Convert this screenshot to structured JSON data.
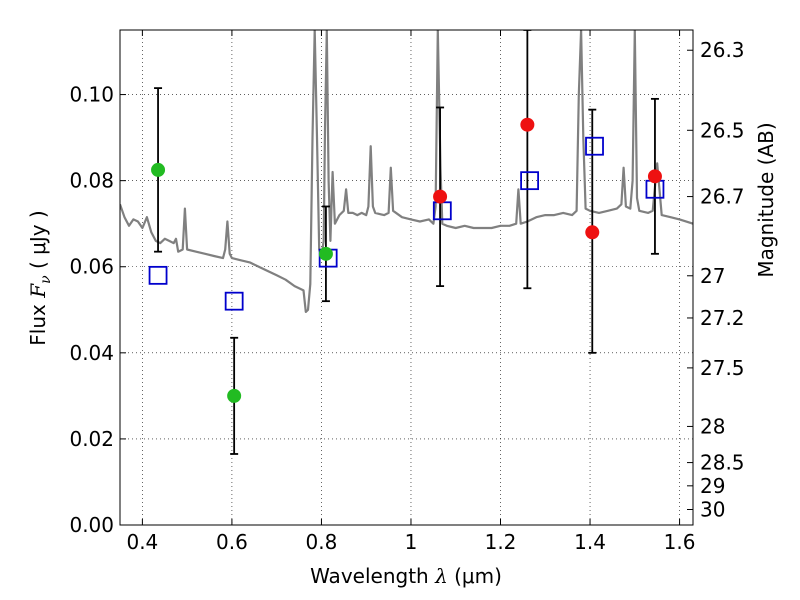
{
  "chart_data": {
    "type": "scatter",
    "xlabel": "Wavelength  λ (μm)",
    "ylabel": "Flux  Fν  ( μJy )",
    "ylabel_parts": {
      "prefix": "Flux  ",
      "var": "F",
      "sub": "ν",
      "unit": "  ( μJy )"
    },
    "xlabel_parts": {
      "prefix": "Wavelength  ",
      "var": "λ",
      "unit": " (μm)"
    },
    "y2label": "Magnitude (AB)",
    "xlim": [
      0.35,
      1.63
    ],
    "ylim": [
      0.0,
      0.115
    ],
    "grid": true,
    "x_ticks": [
      0.4,
      0.6,
      0.8,
      1.0,
      1.2,
      1.4,
      1.6
    ],
    "x_tick_labels": [
      "0.4",
      "0.6",
      "0.8",
      "1",
      "1.2",
      "1.4",
      "1.6"
    ],
    "y_ticks": [
      0.0,
      0.02,
      0.04,
      0.06,
      0.08,
      0.1
    ],
    "y_tick_labels": [
      "0.00",
      "0.02",
      "0.04",
      "0.06",
      "0.08",
      "0.10"
    ],
    "y2_ticks": [
      {
        "label": "26.3",
        "flux": 0.1103
      },
      {
        "label": "26.5",
        "flux": 0.0917
      },
      {
        "label": "26.7",
        "flux": 0.0763
      },
      {
        "label": "27",
        "flux": 0.0579
      },
      {
        "label": "27.2",
        "flux": 0.0481
      },
      {
        "label": "27.5",
        "flux": 0.0365
      },
      {
        "label": "28",
        "flux": 0.0229
      },
      {
        "label": "28.5",
        "flux": 0.0145
      },
      {
        "label": "29",
        "flux": 0.0091
      },
      {
        "label": "30",
        "flux": 0.0036
      }
    ],
    "series": [
      {
        "name": "model spectrum",
        "kind": "line",
        "color": "#808080",
        "points": [
          [
            0.35,
            0.0745
          ],
          [
            0.36,
            0.0715
          ],
          [
            0.37,
            0.0695
          ],
          [
            0.38,
            0.071
          ],
          [
            0.39,
            0.0705
          ],
          [
            0.4,
            0.069
          ],
          [
            0.41,
            0.0715
          ],
          [
            0.42,
            0.068
          ],
          [
            0.43,
            0.066
          ],
          [
            0.44,
            0.0655
          ],
          [
            0.45,
            0.0665
          ],
          [
            0.46,
            0.066
          ],
          [
            0.47,
            0.0655
          ],
          [
            0.475,
            0.0665
          ],
          [
            0.48,
            0.0635
          ],
          [
            0.49,
            0.064
          ],
          [
            0.495,
            0.0735
          ],
          [
            0.5,
            0.064
          ],
          [
            0.52,
            0.0635
          ],
          [
            0.54,
            0.063
          ],
          [
            0.56,
            0.0625
          ],
          [
            0.58,
            0.062
          ],
          [
            0.585,
            0.064
          ],
          [
            0.59,
            0.0705
          ],
          [
            0.595,
            0.063
          ],
          [
            0.6,
            0.062
          ],
          [
            0.62,
            0.0615
          ],
          [
            0.64,
            0.061
          ],
          [
            0.65,
            0.0605
          ],
          [
            0.66,
            0.06
          ],
          [
            0.68,
            0.059
          ],
          [
            0.7,
            0.058
          ],
          [
            0.72,
            0.057
          ],
          [
            0.74,
            0.0555
          ],
          [
            0.76,
            0.0545
          ],
          [
            0.765,
            0.0495
          ],
          [
            0.77,
            0.05
          ],
          [
            0.775,
            0.056
          ],
          [
            0.78,
            0.09
          ],
          [
            0.785,
            0.115
          ],
          [
            0.79,
            0.09
          ],
          [
            0.795,
            0.064
          ],
          [
            0.8,
            0.0625
          ],
          [
            0.805,
            0.066
          ],
          [
            0.808,
            0.092
          ],
          [
            0.812,
            0.115
          ],
          [
            0.816,
            0.08
          ],
          [
            0.82,
            0.066
          ],
          [
            0.825,
            0.082
          ],
          [
            0.83,
            0.07
          ],
          [
            0.84,
            0.072
          ],
          [
            0.85,
            0.073
          ],
          [
            0.855,
            0.078
          ],
          [
            0.86,
            0.0725
          ],
          [
            0.87,
            0.0725
          ],
          [
            0.88,
            0.072
          ],
          [
            0.89,
            0.0725
          ],
          [
            0.9,
            0.072
          ],
          [
            0.905,
            0.074
          ],
          [
            0.91,
            0.088
          ],
          [
            0.915,
            0.074
          ],
          [
            0.92,
            0.0725
          ],
          [
            0.94,
            0.072
          ],
          [
            0.95,
            0.0725
          ],
          [
            0.955,
            0.083
          ],
          [
            0.96,
            0.073
          ],
          [
            0.98,
            0.0715
          ],
          [
            1.0,
            0.071
          ],
          [
            1.02,
            0.0705
          ],
          [
            1.04,
            0.071
          ],
          [
            1.05,
            0.07
          ],
          [
            1.055,
            0.074
          ],
          [
            1.06,
            0.115
          ],
          [
            1.066,
            0.083
          ],
          [
            1.07,
            0.07
          ],
          [
            1.08,
            0.0695
          ],
          [
            1.1,
            0.069
          ],
          [
            1.12,
            0.0695
          ],
          [
            1.14,
            0.069
          ],
          [
            1.16,
            0.069
          ],
          [
            1.18,
            0.069
          ],
          [
            1.2,
            0.0695
          ],
          [
            1.22,
            0.0695
          ],
          [
            1.235,
            0.07
          ],
          [
            1.24,
            0.078
          ],
          [
            1.245,
            0.07
          ],
          [
            1.26,
            0.0705
          ],
          [
            1.28,
            0.0715
          ],
          [
            1.3,
            0.072
          ],
          [
            1.32,
            0.072
          ],
          [
            1.34,
            0.0725
          ],
          [
            1.36,
            0.072
          ],
          [
            1.37,
            0.073
          ],
          [
            1.375,
            0.1
          ],
          [
            1.38,
            0.115
          ],
          [
            1.385,
            0.09
          ],
          [
            1.39,
            0.0735
          ],
          [
            1.4,
            0.073
          ],
          [
            1.42,
            0.0725
          ],
          [
            1.44,
            0.073
          ],
          [
            1.46,
            0.0735
          ],
          [
            1.47,
            0.0745
          ],
          [
            1.475,
            0.083
          ],
          [
            1.48,
            0.074
          ],
          [
            1.49,
            0.0735
          ],
          [
            1.495,
            0.08
          ],
          [
            1.5,
            0.115
          ],
          [
            1.505,
            0.076
          ],
          [
            1.51,
            0.073
          ],
          [
            1.53,
            0.0725
          ],
          [
            1.54,
            0.073
          ],
          [
            1.55,
            0.084
          ],
          [
            1.56,
            0.072
          ],
          [
            1.58,
            0.0715
          ],
          [
            1.6,
            0.071
          ],
          [
            1.63,
            0.07
          ]
        ]
      },
      {
        "name": "model photometry",
        "kind": "open-square",
        "color": "#0000cc",
        "x": [
          0.435,
          0.605,
          0.815,
          1.07,
          1.265,
          1.41,
          1.545
        ],
        "y": [
          0.058,
          0.052,
          0.062,
          0.073,
          0.08,
          0.088,
          0.078
        ]
      },
      {
        "name": "detections (blue bands)",
        "kind": "filled-circle",
        "color": "#22bb22",
        "x": [
          0.435,
          0.605,
          0.81
        ],
        "y": [
          0.0825,
          0.03,
          0.063
        ]
      },
      {
        "name": "detections (red bands)",
        "kind": "filled-circle",
        "color": "#ee1111",
        "x": [
          1.065,
          1.26,
          1.405,
          1.545
        ],
        "y": [
          0.0763,
          0.093,
          0.068,
          0.081
        ]
      }
    ],
    "error_bars": [
      {
        "x": 0.435,
        "low": 0.0635,
        "high": 0.1015
      },
      {
        "x": 0.605,
        "low": 0.0165,
        "high": 0.0435
      },
      {
        "x": 0.81,
        "low": 0.052,
        "high": 0.074
      },
      {
        "x": 1.065,
        "low": 0.0555,
        "high": 0.097
      },
      {
        "x": 1.26,
        "low": 0.055,
        "high": 0.115
      },
      {
        "x": 1.405,
        "low": 0.04,
        "high": 0.0965
      },
      {
        "x": 1.545,
        "low": 0.063,
        "high": 0.099
      }
    ]
  }
}
